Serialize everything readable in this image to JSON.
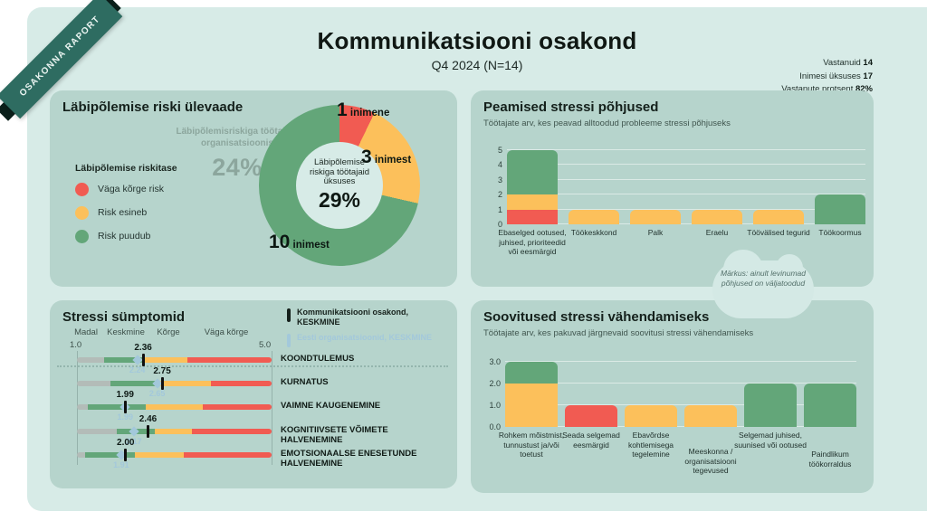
{
  "ribbon": {
    "label": "OSAKONNA RAPORT"
  },
  "header": {
    "title": "Kommunikatsiooni osakond",
    "subtitle": "Q4 2024 (N=14)",
    "stats": [
      {
        "label": "Vastanuid",
        "value": "14"
      },
      {
        "label": "Inimesi üksuses",
        "value": "17"
      },
      {
        "label": "Vastanute protsent",
        "value": "82%"
      }
    ]
  },
  "colors": {
    "red": "#f15b52",
    "yellow": "#fcc05b",
    "green": "#63a679",
    "gray": "#b3bcb8",
    "blue": "#a3c8db",
    "dark": "#15201b",
    "teal": "#2e6c61",
    "canvas": "#d7ebe7",
    "panel": "#b6d4cc"
  },
  "panels": {
    "burnout": {
      "title": "Läbipõlemise riski ülevaade",
      "org_label": "Läbipõlemisriskiga töötajaid organisatsioonis",
      "org_value": "24%",
      "legend_title": "Läbipõlemise riskitase",
      "legend": [
        {
          "label": "Väga kõrge risk",
          "color": "red"
        },
        {
          "label": "Risk esineb",
          "color": "yellow"
        },
        {
          "label": "Risk puudub",
          "color": "green"
        }
      ]
    },
    "causes": {
      "title": "Peamised stressi põhjused",
      "subtitle": "Töötajate arv, kes peavad alltoodud probleeme stressi põhjuseks"
    },
    "symptoms": {
      "title": "Stressi sümptomid",
      "legend": [
        {
          "label": "Kommunikatsiooni osakond, KESKMINE",
          "color": "dark"
        },
        {
          "label": "Eesti organisatsioonid, KESKMINE",
          "color": "blue"
        }
      ]
    },
    "suggestions": {
      "title": "Soovitused stressi vähendamiseks",
      "subtitle": "Töötajate arv, kes pakuvad järgnevaid soovitusi stressi vähendamiseks"
    }
  },
  "note_cloud": {
    "text": "Märkus: ainult levinumad põhjused on väljatoodud"
  },
  "chart_data": [
    {
      "id": "burnout_donut",
      "type": "pie",
      "title": "Läbipõlemise riski ülevaade",
      "center_label": "Läbipõlemise riskiga töötajaid üksuses",
      "center_value": "29%",
      "slices": [
        {
          "label": "Väga kõrge risk",
          "value": 1,
          "callout_value": "1",
          "callout_unit": "inimene",
          "color": "red"
        },
        {
          "label": "Risk esineb",
          "value": 3,
          "callout_value": "3",
          "callout_unit": "inimest",
          "color": "yellow"
        },
        {
          "label": "Risk puudub",
          "value": 10,
          "callout_value": "10",
          "callout_unit": "inimest",
          "color": "green"
        }
      ]
    },
    {
      "id": "stress_causes",
      "type": "bar",
      "stacked": true,
      "title": "Peamised stressi põhjused",
      "ylim": [
        0,
        5
      ],
      "yticks": [
        "0",
        "1",
        "2",
        "3",
        "4",
        "5"
      ],
      "categories": [
        "Ebaselged ootused, juhised, prioriteedid või eesmärgid",
        "Töökeskkond",
        "Palk",
        "Eraelu",
        "Töövälised tegurid",
        "Töökoormus"
      ],
      "bars": [
        [
          {
            "color": "red",
            "value": 1
          },
          {
            "color": "yellow",
            "value": 1
          },
          {
            "color": "green",
            "value": 3
          }
        ],
        [
          {
            "color": "yellow",
            "value": 1
          }
        ],
        [
          {
            "color": "yellow",
            "value": 1
          }
        ],
        [
          {
            "color": "yellow",
            "value": 1
          }
        ],
        [
          {
            "color": "yellow",
            "value": 1
          }
        ],
        [
          {
            "color": "green",
            "value": 2
          }
        ]
      ]
    },
    {
      "id": "stress_symptoms",
      "type": "bullet",
      "title": "Stressi sümptomid",
      "xlim": [
        1.0,
        5.0
      ],
      "scale_min": "1.0",
      "scale_max": "5.0",
      "zone_labels": [
        "Madal",
        "Keskmine",
        "Kõrge",
        "Väga kõrge"
      ],
      "series": [
        "Kommunikatsiooni osakond, KESKMINE",
        "Eesti organisatsioonid, KESKMINE"
      ],
      "rows": [
        {
          "label": "KOONDTULEMUS",
          "dept": "2.36",
          "benchmark": "2.24",
          "zones": [
            1.55,
            2.38,
            3.27
          ]
        },
        {
          "label": "KURNATUS",
          "dept": "2.75",
          "benchmark": "2.65",
          "zones": [
            1.68,
            2.7,
            3.75
          ]
        },
        {
          "label": "VAIMNE KAUGENEMINE",
          "dept": "1.99",
          "benchmark": "1.99",
          "zones": [
            1.22,
            2.42,
            3.58
          ]
        },
        {
          "label": "KOGNITIIVSETE VÕIMETE HALVENEMINE",
          "dept": "2.46",
          "benchmark": "2.17",
          "zones": [
            1.81,
            2.6,
            3.37
          ]
        },
        {
          "label": "EMOTSIONAALSE ENESETUNDE HALVENEMINE",
          "dept": "2.00",
          "benchmark": "1.91",
          "zones": [
            1.16,
            2.2,
            3.19
          ]
        }
      ]
    },
    {
      "id": "suggestions",
      "type": "bar",
      "stacked": true,
      "title": "Soovitused stressi vähendamiseks",
      "ylim": [
        0,
        3
      ],
      "yticks": [
        "0.0",
        "1.0",
        "2.0",
        "3.0"
      ],
      "categories": [
        "Rohkem mõistmist, tunnustust ja/või toetust",
        "Seada selgemad eesmärgid",
        "Ebavõrdse kohtlemisega tegelemine",
        "Meeskonna / organisatsiooni tegevused",
        "Selgemad juhised, suunised või ootused",
        "Paindlikum töökorraldus"
      ],
      "bars": [
        [
          {
            "color": "yellow",
            "value": 2
          },
          {
            "color": "green",
            "value": 1
          }
        ],
        [
          {
            "color": "red",
            "value": 1
          }
        ],
        [
          {
            "color": "yellow",
            "value": 1
          }
        ],
        [
          {
            "color": "yellow",
            "value": 1
          }
        ],
        [
          {
            "color": "green",
            "value": 2
          }
        ],
        [
          {
            "color": "green",
            "value": 2
          }
        ]
      ]
    }
  ]
}
